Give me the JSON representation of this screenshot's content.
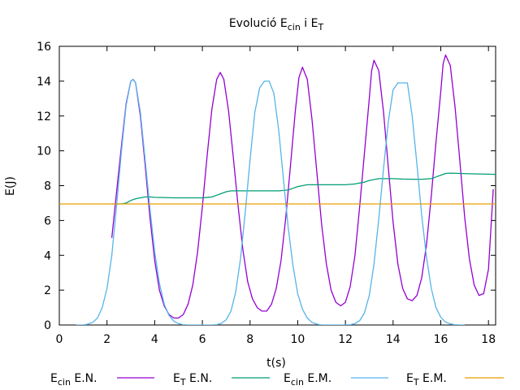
{
  "chart_data": {
    "type": "line",
    "title": {
      "main": "Evolució E",
      "sub1": "cin",
      "mid": " i E",
      "sub2": "T"
    },
    "xlabel": "t(s)",
    "ylabel": "E(J)",
    "xlim": [
      0,
      18.3
    ],
    "ylim": [
      0,
      16
    ],
    "xticks": [
      0,
      2,
      4,
      6,
      8,
      10,
      12,
      14,
      16,
      18
    ],
    "yticks": [
      0,
      2,
      4,
      6,
      8,
      10,
      12,
      14,
      16
    ],
    "grid": false,
    "legend_position": "bottom",
    "series": [
      {
        "name": {
          "main": "E",
          "sub": "cin",
          "rest": " E.N."
        },
        "color": "#9400d3",
        "x": [
          2.2,
          2.4,
          2.6,
          2.8,
          3.0,
          3.1,
          3.2,
          3.4,
          3.6,
          3.8,
          4.0,
          4.2,
          4.4,
          4.6,
          4.8,
          5.0,
          5.2,
          5.4,
          5.6,
          5.8,
          6.0,
          6.2,
          6.4,
          6.6,
          6.75,
          6.9,
          7.1,
          7.3,
          7.5,
          7.7,
          7.9,
          8.1,
          8.3,
          8.5,
          8.7,
          8.9,
          9.1,
          9.3,
          9.5,
          9.7,
          9.9,
          10.05,
          10.2,
          10.4,
          10.6,
          10.8,
          11.0,
          11.2,
          11.4,
          11.6,
          11.8,
          12.0,
          12.2,
          12.4,
          12.6,
          12.8,
          13.0,
          13.1,
          13.2,
          13.4,
          13.6,
          13.8,
          14.0,
          14.2,
          14.4,
          14.6,
          14.8,
          15.0,
          15.2,
          15.4,
          15.6,
          15.8,
          16.0,
          16.1,
          16.2,
          16.4,
          16.6,
          16.8,
          17.0,
          17.2,
          17.4,
          17.6,
          17.8,
          18.0,
          18.2
        ],
        "y": [
          5.0,
          7.6,
          10.2,
          12.7,
          14.0,
          14.1,
          13.9,
          12.0,
          9.2,
          6.2,
          3.7,
          2.0,
          1.1,
          0.6,
          0.4,
          0.4,
          0.6,
          1.2,
          2.3,
          4.2,
          6.8,
          9.7,
          12.4,
          14.1,
          14.5,
          14.1,
          12.3,
          9.6,
          6.8,
          4.3,
          2.5,
          1.5,
          1.0,
          0.8,
          0.8,
          1.2,
          2.1,
          3.7,
          6.2,
          9.2,
          12.3,
          14.2,
          14.8,
          14.1,
          11.8,
          8.8,
          5.8,
          3.5,
          2.0,
          1.3,
          1.1,
          1.3,
          2.2,
          4.0,
          6.8,
          9.9,
          13.0,
          14.6,
          15.2,
          14.6,
          12.2,
          9.0,
          5.9,
          3.5,
          2.1,
          1.5,
          1.4,
          1.7,
          2.7,
          4.6,
          7.4,
          10.5,
          13.4,
          15.0,
          15.5,
          14.9,
          12.5,
          9.4,
          6.2,
          3.8,
          2.3,
          1.7,
          1.8,
          3.2,
          7.8
        ]
      },
      {
        "name": {
          "main": "E",
          "sub": "T",
          "rest": " E.N."
        },
        "color": "#009e73",
        "x": [
          2.2,
          2.6,
          2.8,
          3.0,
          3.2,
          3.4,
          3.6,
          3.8,
          4.0,
          4.4,
          4.8,
          5.2,
          5.6,
          6.0,
          6.4,
          6.6,
          6.8,
          7.0,
          7.2,
          7.6,
          8.0,
          8.4,
          8.8,
          9.2,
          9.6,
          9.8,
          10.0,
          10.2,
          10.4,
          10.8,
          11.2,
          11.6,
          12.0,
          12.4,
          12.8,
          13.0,
          13.2,
          13.4,
          13.6,
          14.0,
          14.4,
          14.8,
          15.2,
          15.6,
          15.8,
          16.0,
          16.2,
          16.4,
          16.8,
          17.2,
          17.6,
          18.0,
          18.3
        ],
        "y": [
          6.95,
          6.95,
          7.0,
          7.15,
          7.25,
          7.3,
          7.35,
          7.35,
          7.33,
          7.32,
          7.3,
          7.3,
          7.3,
          7.3,
          7.35,
          7.45,
          7.55,
          7.65,
          7.7,
          7.7,
          7.7,
          7.7,
          7.7,
          7.7,
          7.75,
          7.85,
          7.95,
          8.0,
          8.05,
          8.05,
          8.05,
          8.05,
          8.05,
          8.1,
          8.2,
          8.3,
          8.35,
          8.4,
          8.4,
          8.4,
          8.38,
          8.37,
          8.37,
          8.4,
          8.5,
          8.6,
          8.7,
          8.72,
          8.7,
          8.68,
          8.67,
          8.66,
          8.65
        ]
      },
      {
        "name": {
          "main": "E",
          "sub": "cin",
          "rest": " E.M."
        },
        "color": "#56b4e9",
        "x": [
          0.7,
          1.0,
          1.2,
          1.4,
          1.6,
          1.8,
          2.0,
          2.2,
          2.4,
          2.6,
          2.8,
          3.0,
          3.1,
          3.2,
          3.4,
          3.6,
          3.8,
          4.0,
          4.2,
          4.4,
          4.6,
          4.8,
          5.0,
          5.2,
          5.4,
          5.6,
          5.8,
          6.0,
          6.2,
          6.4,
          6.6,
          6.8,
          7.0,
          7.2,
          7.4,
          7.6,
          7.8,
          8.0,
          8.2,
          8.4,
          8.6,
          8.8,
          9.0,
          9.2,
          9.4,
          9.6,
          9.8,
          10.0,
          10.2,
          10.4,
          10.6,
          10.8,
          11.0,
          11.2,
          11.4,
          11.6,
          11.8,
          12.0,
          12.2,
          12.4,
          12.6,
          12.8,
          13.0,
          13.2,
          13.4,
          13.6,
          13.8,
          14.0,
          14.2,
          14.4,
          14.6,
          14.8,
          15.0,
          15.2,
          15.4,
          15.6,
          15.8,
          16.0,
          16.2,
          16.4,
          16.6,
          16.8,
          17.0
        ],
        "y": [
          0.0,
          0.0,
          0.05,
          0.15,
          0.4,
          1.0,
          2.1,
          4.0,
          6.8,
          9.9,
          12.6,
          14.0,
          14.1,
          13.9,
          12.2,
          9.5,
          6.7,
          4.2,
          2.4,
          1.2,
          0.55,
          0.22,
          0.08,
          0.02,
          0.0,
          0.0,
          0.0,
          0.0,
          0.0,
          0.0,
          0.02,
          0.1,
          0.3,
          0.8,
          1.9,
          3.8,
          6.5,
          9.5,
          12.2,
          13.6,
          14.0,
          14.0,
          13.3,
          11.2,
          8.4,
          5.6,
          3.4,
          1.8,
          0.9,
          0.4,
          0.15,
          0.05,
          0.0,
          0.0,
          0.0,
          0.0,
          0.0,
          0.0,
          0.02,
          0.08,
          0.25,
          0.7,
          1.7,
          3.5,
          6.1,
          9.0,
          11.7,
          13.5,
          13.9,
          13.9,
          13.9,
          12.0,
          9.2,
          6.3,
          3.9,
          2.1,
          1.0,
          0.45,
          0.17,
          0.06,
          0.02,
          0.0,
          0.0
        ]
      },
      {
        "name": {
          "main": "E",
          "sub": "T",
          "rest": " E.M."
        },
        "color": "#e69f00",
        "x": [
          0.0,
          18.3
        ],
        "y": [
          6.95,
          6.95
        ]
      }
    ]
  }
}
